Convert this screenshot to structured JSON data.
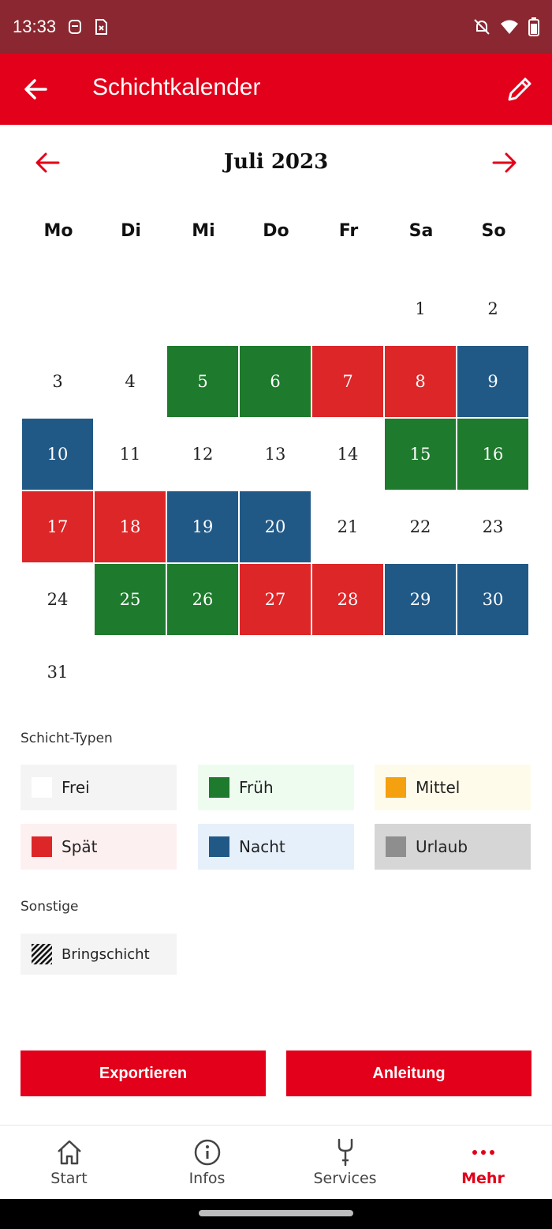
{
  "status_bar": {
    "time": "13:33"
  },
  "app_bar": {
    "title": "Schichtkalender"
  },
  "month": {
    "label": "Juli 2023"
  },
  "weekdays": [
    "Mo",
    "Di",
    "Mi",
    "Do",
    "Fr",
    "Sa",
    "So"
  ],
  "days": [
    {
      "day": "1",
      "type": "frei"
    },
    {
      "day": "2",
      "type": "frei"
    },
    {
      "day": "3",
      "type": "frei"
    },
    {
      "day": "4",
      "type": "frei"
    },
    {
      "day": "5",
      "type": "frueh"
    },
    {
      "day": "6",
      "type": "frueh"
    },
    {
      "day": "7",
      "type": "spaet"
    },
    {
      "day": "8",
      "type": "spaet"
    },
    {
      "day": "9",
      "type": "nacht"
    },
    {
      "day": "10",
      "type": "nacht"
    },
    {
      "day": "11",
      "type": "frei"
    },
    {
      "day": "12",
      "type": "frei"
    },
    {
      "day": "13",
      "type": "frei"
    },
    {
      "day": "14",
      "type": "frei"
    },
    {
      "day": "15",
      "type": "frueh"
    },
    {
      "day": "16",
      "type": "frueh"
    },
    {
      "day": "17",
      "type": "spaet"
    },
    {
      "day": "18",
      "type": "spaet"
    },
    {
      "day": "19",
      "type": "nacht"
    },
    {
      "day": "20",
      "type": "nacht"
    },
    {
      "day": "21",
      "type": "frei"
    },
    {
      "day": "22",
      "type": "frei"
    },
    {
      "day": "23",
      "type": "frei"
    },
    {
      "day": "24",
      "type": "frei"
    },
    {
      "day": "25",
      "type": "frueh"
    },
    {
      "day": "26",
      "type": "frueh"
    },
    {
      "day": "27",
      "type": "spaet"
    },
    {
      "day": "28",
      "type": "spaet"
    },
    {
      "day": "29",
      "type": "nacht"
    },
    {
      "day": "30",
      "type": "nacht"
    },
    {
      "day": "31",
      "type": "frei"
    }
  ],
  "legend": {
    "title": "Schicht-Typen",
    "items": [
      {
        "label": "Frei",
        "color": "#ffffff",
        "bg": "#f4f4f4"
      },
      {
        "label": "Früh",
        "color": "#1e7a2c",
        "bg": "#eefcf0"
      },
      {
        "label": "Mittel",
        "color": "#f5a00f",
        "bg": "#fefbea"
      },
      {
        "label": "Spät",
        "color": "#dc2628",
        "bg": "#fdf0f0"
      },
      {
        "label": "Nacht",
        "color": "#215986",
        "bg": "#e5f0fa"
      },
      {
        "label": "Urlaub",
        "color": "#8e8e8e",
        "bg": "#d6d6d6"
      }
    ]
  },
  "other": {
    "title": "Sonstige",
    "items": [
      {
        "label": "Bringschicht"
      }
    ]
  },
  "buttons": {
    "export": "Exportieren",
    "guide": "Anleitung"
  },
  "bottom_nav": {
    "items": [
      {
        "label": "Start",
        "icon": "home-icon"
      },
      {
        "label": "Infos",
        "icon": "info-icon"
      },
      {
        "label": "Services",
        "icon": "wrench-icon"
      },
      {
        "label": "Mehr",
        "icon": "more-dots-icon",
        "active": true
      }
    ]
  },
  "colors": {
    "primary": "#e2001a",
    "status_bar": "#8a2730"
  }
}
